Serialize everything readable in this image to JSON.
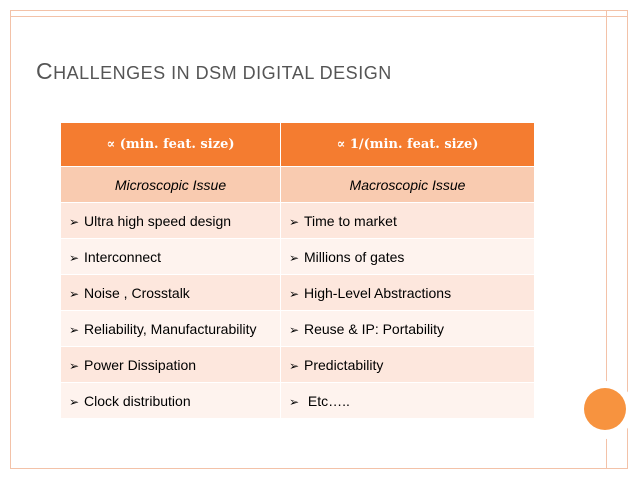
{
  "slide": {
    "title_first": "C",
    "title_rest": "HALLENGES IN DSM DIGITAL DESIGN"
  },
  "table": {
    "header": [
      "∝ (min. feat. size)",
      "∝ 1/(min. feat. size)"
    ],
    "subheader": [
      "Microscopic Issue",
      "Macroscopic Issue"
    ],
    "bullet_glyph": "➢",
    "rows": [
      [
        "Ultra high speed design",
        "Time to market"
      ],
      [
        "Interconnect",
        "Millions of gates"
      ],
      [
        "Noise , Crosstalk",
        "High-Level Abstractions"
      ],
      [
        "Reliability, Manufacturability",
        "Reuse & IP: Portability"
      ],
      [
        "Power Dissipation",
        "Predictability"
      ],
      [
        "Clock distribution",
        " Etc….."
      ]
    ]
  },
  "colors": {
    "header_fill": "#f47c30",
    "subheader_fill": "#f9cbb0",
    "row_fill_a": "#fde7dd",
    "row_fill_b": "#fef3ee",
    "accent_orb": "#f7933f",
    "frame": "#f3c2a8"
  }
}
